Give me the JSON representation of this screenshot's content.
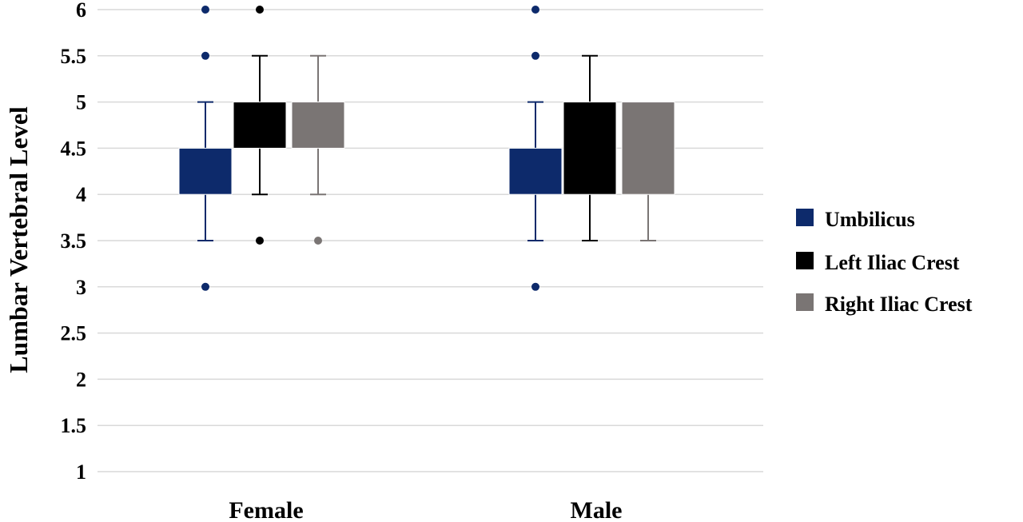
{
  "chart_data": {
    "type": "boxplot",
    "title": "",
    "xlabel": "",
    "ylabel": "Lumbar Vertebral Level",
    "ylim": [
      1,
      6
    ],
    "yticks": [
      "1",
      "1.5",
      "2",
      "2.5",
      "3",
      "3.5",
      "4",
      "4.5",
      "5",
      "5.5",
      "6"
    ],
    "grid": true,
    "legend_position": "right",
    "categories": [
      "Female",
      "Male"
    ],
    "series": [
      {
        "name": "Umbilicus",
        "color": "#0d2a6b",
        "boxes": [
          {
            "whisker_low": 3.5,
            "q1": 4,
            "median": 4,
            "q3": 4.5,
            "whisker_high": 5,
            "outliers": [
              3,
              5.5,
              6
            ]
          },
          {
            "whisker_low": 3.5,
            "q1": 4,
            "median": 4,
            "q3": 4.5,
            "whisker_high": 5,
            "outliers": [
              3,
              5.5,
              6
            ]
          }
        ]
      },
      {
        "name": "Left Iliac Crest",
        "color": "#000000",
        "boxes": [
          {
            "whisker_low": 4,
            "q1": 4.5,
            "median": 5,
            "q3": 5,
            "whisker_high": 5.5,
            "outliers": [
              3.5,
              6
            ]
          },
          {
            "whisker_low": 3.5,
            "q1": 4,
            "median": 4,
            "q3": 5,
            "whisker_high": 5.5,
            "outliers": []
          }
        ]
      },
      {
        "name": "Right Iliac Crest",
        "color": "#7a7574",
        "boxes": [
          {
            "whisker_low": 4,
            "q1": 4.5,
            "median": 5,
            "q3": 5,
            "whisker_high": 5.5,
            "outliers": [
              3.5
            ]
          },
          {
            "whisker_low": 3.5,
            "q1": 4,
            "median": 4,
            "q3": 5,
            "whisker_high": 5,
            "outliers": []
          }
        ]
      }
    ]
  }
}
